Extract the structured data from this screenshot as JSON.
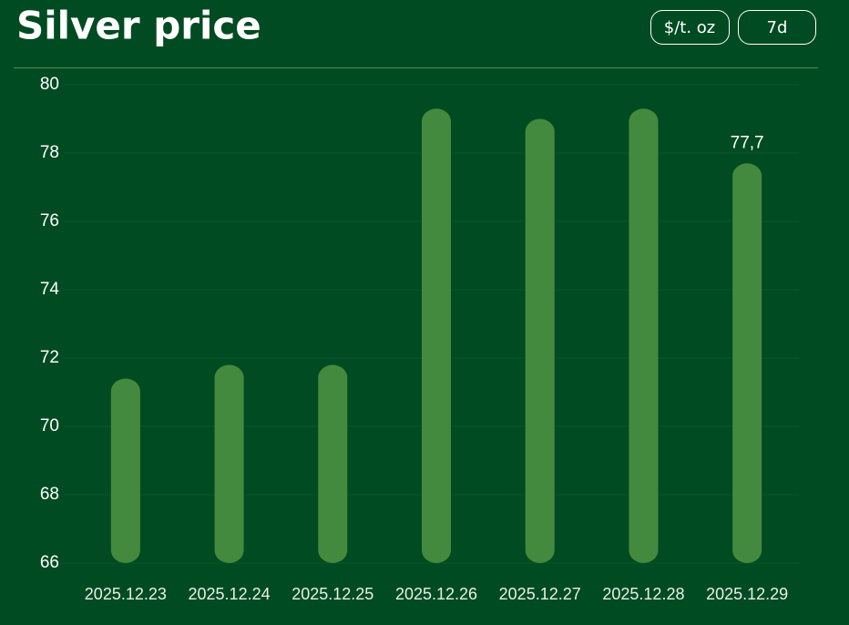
{
  "chart_data": {
    "type": "bar",
    "title": "Silver price",
    "controls": [
      "$/t. oz",
      "7d"
    ],
    "categories": [
      "2025.12.23",
      "2025.12.24",
      "2025.12.25",
      "2025.12.26",
      "2025.12.27",
      "2025.12.28",
      "2025.12.29"
    ],
    "values": [
      71.4,
      71.8,
      71.8,
      79.3,
      79.0,
      79.3,
      77.7
    ],
    "value_labels": [
      null,
      null,
      null,
      null,
      null,
      null,
      "77,7"
    ],
    "color": "#448a3e",
    "ylim": [
      66,
      80
    ],
    "yticks": [
      66,
      68,
      70,
      72,
      74,
      76,
      78,
      80
    ],
    "grid": true
  }
}
